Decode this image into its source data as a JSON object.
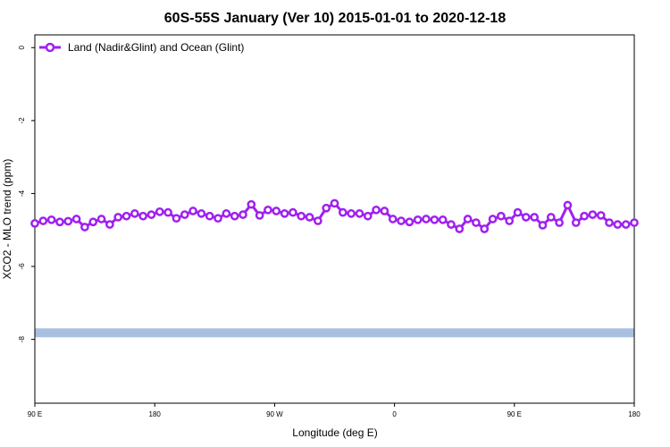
{
  "chart_data": {
    "type": "line",
    "title": "60S-55S January (Ver 10)   2015-01-01 to 2020-12-18",
    "xlabel": "Longitude (deg E)",
    "ylabel": "XCO2 - MLO trend (ppm)",
    "xlim": [
      90,
      450
    ],
    "ylim": [
      -9.75,
      0.35
    ],
    "x_ticks": [
      {
        "value": 90,
        "label": "90 E"
      },
      {
        "value": 162,
        "label": "180"
      },
      {
        "value": 234,
        "label": "90 W"
      },
      {
        "value": 306,
        "label": "0"
      },
      {
        "value": 378,
        "label": "90 E"
      },
      {
        "value": 450,
        "label": "180"
      }
    ],
    "y_ticks": [
      {
        "value": 0,
        "label": "0"
      },
      {
        "value": -2,
        "label": "-2"
      },
      {
        "value": -4,
        "label": "-4"
      },
      {
        "value": -6,
        "label": "-6"
      },
      {
        "value": -8,
        "label": "-8"
      }
    ],
    "grid": false,
    "legend_position": "top-left",
    "series": [
      {
        "name": "Land (Nadir&Glint) and Ocean (Glint)",
        "color": "#a020f0",
        "marker": "open-circle",
        "x": [
          90,
          95,
          100,
          105,
          110,
          115,
          120,
          125,
          130,
          135,
          140,
          145,
          150,
          155,
          160,
          165,
          170,
          175,
          180,
          185,
          190,
          195,
          200,
          205,
          210,
          215,
          220,
          225,
          230,
          235,
          240,
          245,
          250,
          255,
          260,
          265,
          270,
          275,
          280,
          285,
          290,
          295,
          300,
          305,
          310,
          315,
          320,
          325,
          330,
          335,
          340,
          345,
          350,
          355,
          360,
          365,
          370,
          375,
          380,
          385,
          390,
          395,
          400,
          405,
          410,
          415,
          420,
          425,
          430,
          435,
          440,
          445,
          450
        ],
        "y": [
          -4.82,
          -4.75,
          -4.72,
          -4.78,
          -4.76,
          -4.7,
          -4.92,
          -4.78,
          -4.7,
          -4.85,
          -4.65,
          -4.62,
          -4.55,
          -4.62,
          -4.58,
          -4.5,
          -4.52,
          -4.68,
          -4.58,
          -4.48,
          -4.55,
          -4.62,
          -4.68,
          -4.55,
          -4.62,
          -4.58,
          -4.3,
          -4.6,
          -4.45,
          -4.48,
          -4.55,
          -4.52,
          -4.62,
          -4.65,
          -4.75,
          -4.4,
          -4.27,
          -4.52,
          -4.55,
          -4.55,
          -4.62,
          -4.45,
          -4.48,
          -4.7,
          -4.75,
          -4.78,
          -4.72,
          -4.7,
          -4.72,
          -4.72,
          -4.85,
          -4.97,
          -4.7,
          -4.8,
          -4.97,
          -4.7,
          -4.62,
          -4.75,
          -4.52,
          -4.65,
          -4.65,
          -4.87,
          -4.65,
          -4.8,
          -4.32,
          -4.8,
          -4.62,
          -4.58,
          -4.6,
          -4.8,
          -4.85,
          -4.85,
          -4.8
        ]
      }
    ],
    "band": {
      "y": -7.82,
      "color": "#a9bfe0"
    }
  }
}
